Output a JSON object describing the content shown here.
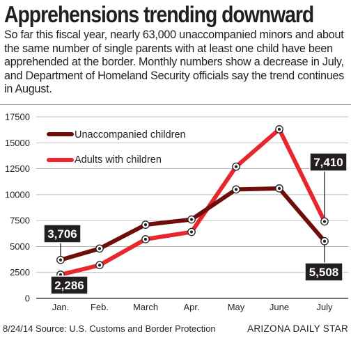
{
  "header": {
    "title": "Apprehensions trending downward",
    "intro": "So far this fiscal year, nearly 63,000 unaccompanied minors and about the same number of single parents with at least one child have been apprehended at the border. Monthly numbers show a decrease in July, and Department of Homeland Security officials say the trend continues in August."
  },
  "footer": {
    "date_source": "8/24/14  Source: U.S. Customs and Border Protection",
    "credit": "ARIZONA DAILY STAR"
  },
  "colors": {
    "unaccompanied": "#6e0e0a",
    "adults": "#e8262d",
    "callout_bg": "#231f20",
    "grid": "#a7a9ac"
  },
  "chart_data": {
    "type": "line",
    "categories": [
      "Jan.",
      "Feb.",
      "March",
      "Apr.",
      "May",
      "June",
      "July"
    ],
    "ylim": [
      0,
      17500
    ],
    "yticks": [
      "0",
      "2500",
      "5000",
      "7500",
      "10000",
      "12500",
      "15000",
      "17500"
    ],
    "grid": "horizontal",
    "legend_position": "top-left",
    "series": [
      {
        "name": "Unaccompanied children",
        "values": [
          3706,
          4800,
          7100,
          7600,
          10500,
          10600,
          5508
        ],
        "color": "#6e0e0a"
      },
      {
        "name": "Adults with children",
        "values": [
          2286,
          3200,
          5700,
          6400,
          12700,
          16300,
          7410
        ],
        "color": "#e8262d"
      }
    ],
    "annotations": [
      {
        "series": 0,
        "index": 0,
        "label": "3,706"
      },
      {
        "series": 1,
        "index": 0,
        "label": "2,286"
      },
      {
        "series": 1,
        "index": 6,
        "label": "7,410"
      },
      {
        "series": 0,
        "index": 6,
        "label": "5,508"
      }
    ]
  }
}
